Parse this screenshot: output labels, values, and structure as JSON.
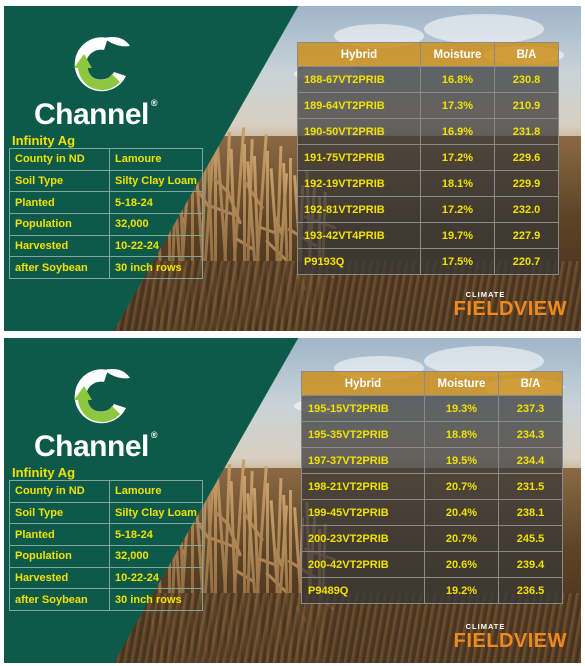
{
  "colors": {
    "brand_green": "#0e5a4a",
    "label_yellow": "#f2e200",
    "header_orange": "#cd8c14",
    "fieldview_orange": "#f08a1c"
  },
  "panels": [
    {
      "brand": "Channel",
      "dealer": "Infinity Ag",
      "info": [
        {
          "label": "County in ND",
          "value": "Lamoure"
        },
        {
          "label": "Soil Type",
          "value": "Silty Clay Loam"
        },
        {
          "label": "Planted",
          "value": "5-18-24"
        },
        {
          "label": "Population",
          "value": "32,000"
        },
        {
          "label": "Harvested",
          "value": "10-22-24"
        },
        {
          "label": "after Soybean",
          "value": "30 inch rows"
        }
      ],
      "table_headers": {
        "hybrid": "Hybrid",
        "moisture": "Moisture",
        "ba": "B/A"
      },
      "rows": [
        {
          "hybrid": "188-67VT2PRIB",
          "moisture": "16.8%",
          "ba": "230.8"
        },
        {
          "hybrid": "189-64VT2PRIB",
          "moisture": "17.3%",
          "ba": "210.9"
        },
        {
          "hybrid": "190-50VT2PRIB",
          "moisture": "16.9%",
          "ba": "231.8"
        },
        {
          "hybrid": "191-75VT2PRIB",
          "moisture": "17.2%",
          "ba": "229.6"
        },
        {
          "hybrid": "192-19VT2PRIB",
          "moisture": "18.1%",
          "ba": "229.9"
        },
        {
          "hybrid": "192-81VT2PRIB",
          "moisture": "17.2%",
          "ba": "232.0"
        },
        {
          "hybrid": "193-42VT4PRIB",
          "moisture": "19.7%",
          "ba": "227.9"
        },
        {
          "hybrid": "P9193Q",
          "moisture": "17.5%",
          "ba": "220.7"
        }
      ],
      "fv_top": "CLIMATE",
      "fv_name": "FIELDVIEW"
    },
    {
      "brand": "Channel",
      "dealer": "Infinity Ag",
      "info": [
        {
          "label": "County in ND",
          "value": "Lamoure"
        },
        {
          "label": "Soil Type",
          "value": "Silty Clay Loam"
        },
        {
          "label": "Planted",
          "value": "5-18-24"
        },
        {
          "label": "Population",
          "value": "32,000"
        },
        {
          "label": "Harvested",
          "value": "10-22-24"
        },
        {
          "label": "after Soybean",
          "value": "30 inch rows"
        }
      ],
      "table_headers": {
        "hybrid": "Hybrid",
        "moisture": "Moisture",
        "ba": "B/A"
      },
      "rows": [
        {
          "hybrid": "195-15VT2PRIB",
          "moisture": "19.3%",
          "ba": "237.3"
        },
        {
          "hybrid": "195-35VT2PRIB",
          "moisture": "18.8%",
          "ba": "234.3"
        },
        {
          "hybrid": "197-37VT2PRIB",
          "moisture": "19.5%",
          "ba": "234.4"
        },
        {
          "hybrid": "198-21VT2PRIB",
          "moisture": "20.7%",
          "ba": "231.5"
        },
        {
          "hybrid": "199-45VT2PRIB",
          "moisture": "20.4%",
          "ba": "238.1"
        },
        {
          "hybrid": "200-23VT2PRIB",
          "moisture": "20.7%",
          "ba": "245.5"
        },
        {
          "hybrid": "200-42VT2PRIB",
          "moisture": "20.6%",
          "ba": "239.4"
        },
        {
          "hybrid": "P9489Q",
          "moisture": "19.2%",
          "ba": "236.5"
        }
      ],
      "fv_top": "CLIMATE",
      "fv_name": "FIELDVIEW"
    }
  ]
}
